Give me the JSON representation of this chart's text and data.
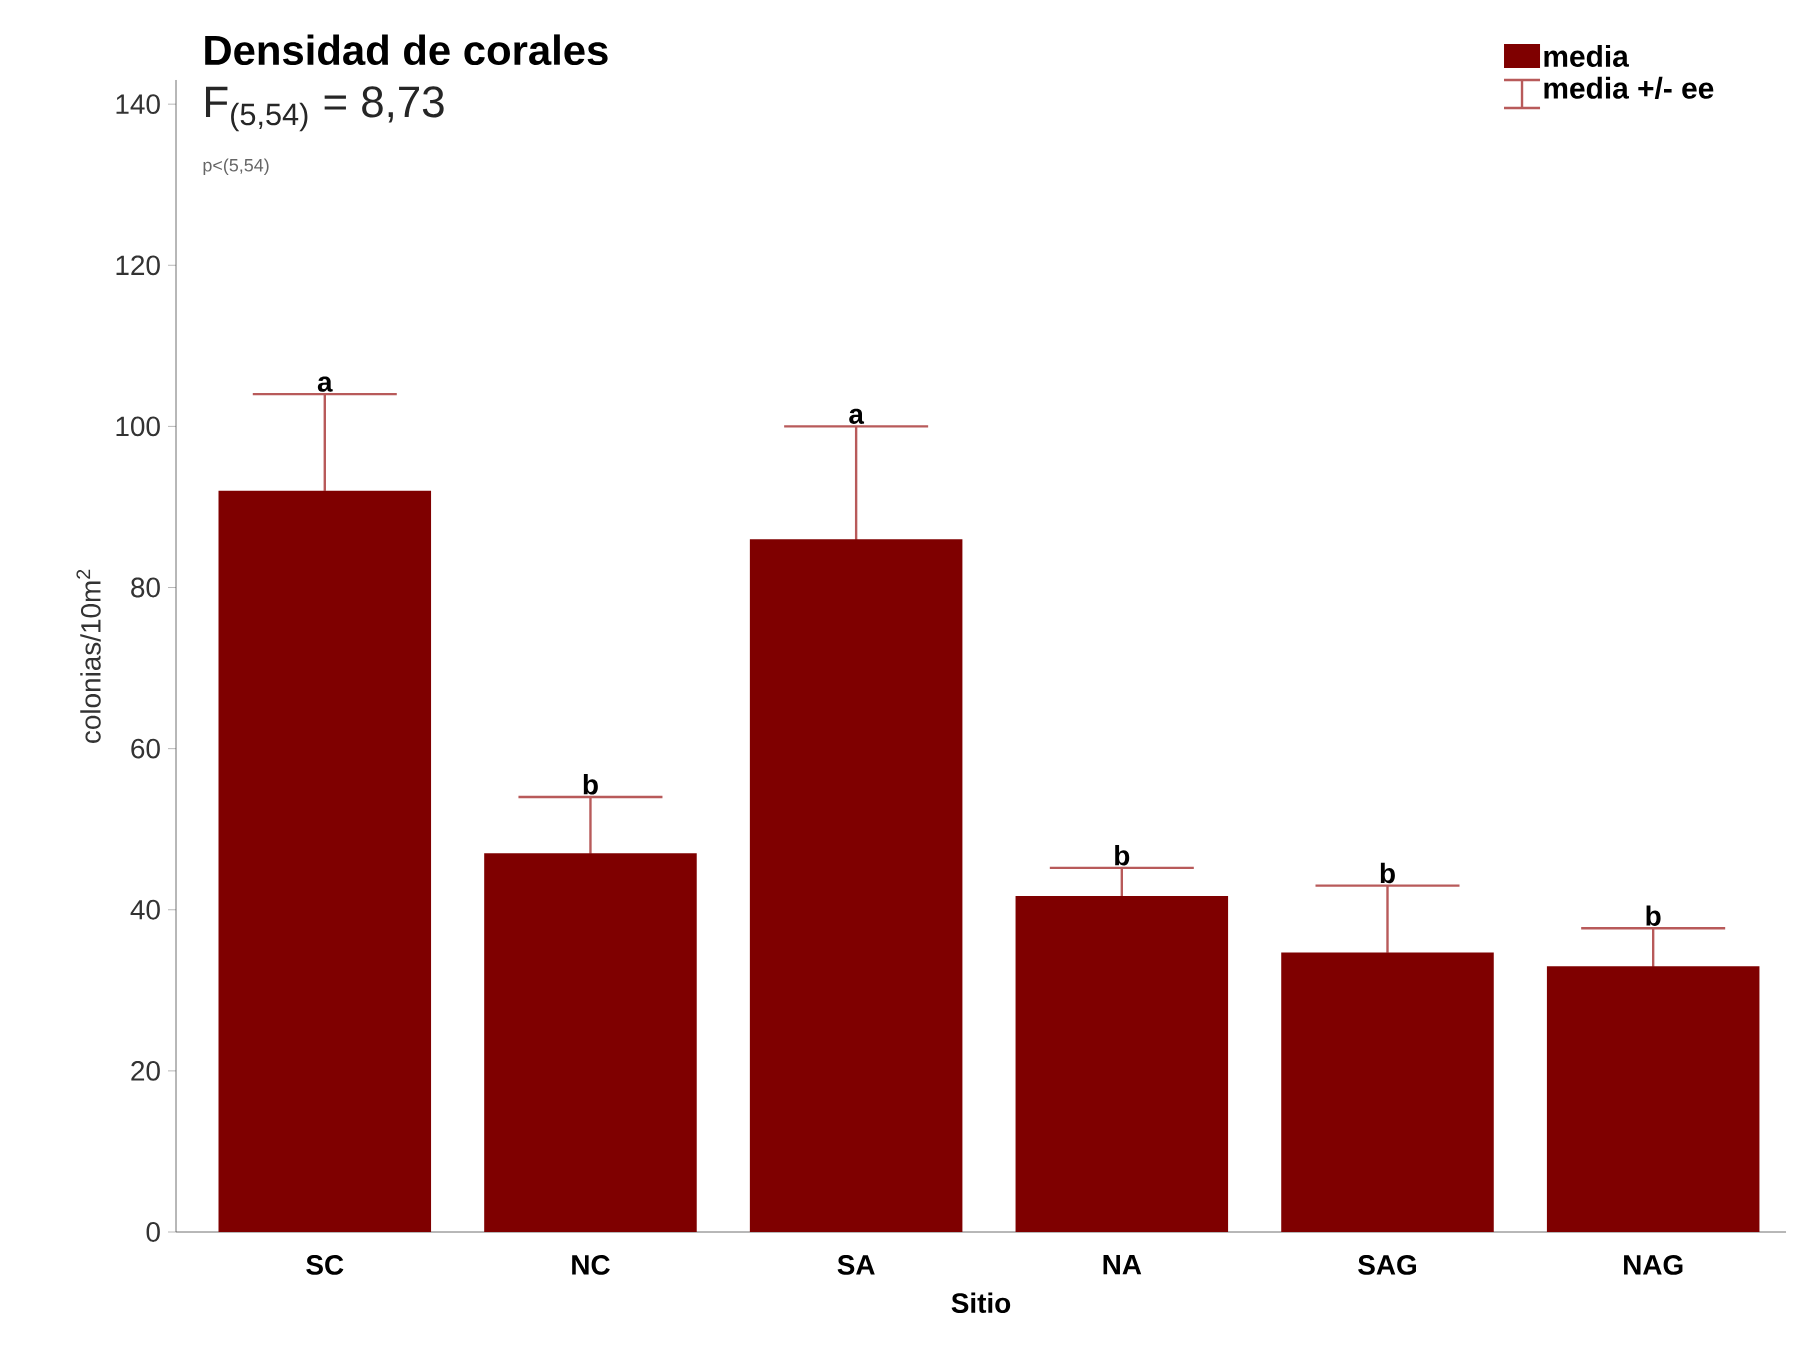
{
  "chart_data": {
    "type": "bar",
    "title": "Densidad de corales",
    "subtitle": "F$_{(5,54)}$ = 8,73",
    "xlabel": "Sitio",
    "ylabel": "colonias/10m$^{2}$",
    "categories": [
      "SC",
      "NC",
      "SA",
      "NA",
      "SAG",
      "NAG"
    ],
    "series": [
      {
        "name": "media",
        "color": "#7f0000",
        "values": [
          92,
          47,
          86,
          41.7,
          34.7,
          33
        ],
        "errors": [
          12,
          7,
          14,
          3.5,
          8.3,
          4.7
        ]
      }
    ],
    "ylim": [
      0,
      143
    ],
    "yticks": [
      0,
      20,
      40,
      60,
      80,
      100,
      120,
      140
    ],
    "legend": "top right",
    "annotations": [
      "p<(5,54)",
      "media +/- ee",
      "a",
      "b",
      "a",
      "b",
      "b",
      "b"
    ]
  }
}
